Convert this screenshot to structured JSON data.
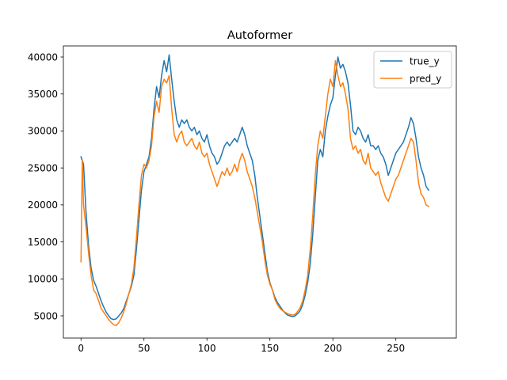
{
  "chart_data": {
    "type": "line",
    "title": "Autoformer",
    "xlabel": "",
    "ylabel": "",
    "xlim": [
      -14,
      298
    ],
    "ylim": [
      2000,
      41500
    ],
    "xticks": [
      0,
      50,
      100,
      150,
      200,
      250
    ],
    "yticks": [
      5000,
      10000,
      15000,
      20000,
      25000,
      30000,
      35000,
      40000
    ],
    "grid": false,
    "legend_position": "top-right",
    "series": [
      {
        "name": "true_y",
        "color": "#1f77b4",
        "points": [
          [
            0,
            26500
          ],
          [
            2,
            25500
          ],
          [
            4,
            19000
          ],
          [
            6,
            14500
          ],
          [
            8,
            11500
          ],
          [
            10,
            9800
          ],
          [
            12,
            9000
          ],
          [
            14,
            8000
          ],
          [
            16,
            7000
          ],
          [
            18,
            6200
          ],
          [
            20,
            5500
          ],
          [
            22,
            5000
          ],
          [
            24,
            4600
          ],
          [
            26,
            4500
          ],
          [
            28,
            4600
          ],
          [
            30,
            5000
          ],
          [
            32,
            5400
          ],
          [
            34,
            6000
          ],
          [
            36,
            7000
          ],
          [
            38,
            8000
          ],
          [
            40,
            9000
          ],
          [
            42,
            10500
          ],
          [
            44,
            14000
          ],
          [
            46,
            18000
          ],
          [
            48,
            22000
          ],
          [
            50,
            24500
          ],
          [
            52,
            25500
          ],
          [
            54,
            26500
          ],
          [
            56,
            29000
          ],
          [
            58,
            33000
          ],
          [
            60,
            36000
          ],
          [
            62,
            34500
          ],
          [
            64,
            37500
          ],
          [
            66,
            39500
          ],
          [
            68,
            38000
          ],
          [
            70,
            40300
          ],
          [
            72,
            37000
          ],
          [
            74,
            34000
          ],
          [
            76,
            31500
          ],
          [
            78,
            30500
          ],
          [
            80,
            31500
          ],
          [
            82,
            31000
          ],
          [
            84,
            31500
          ],
          [
            86,
            30500
          ],
          [
            88,
            30000
          ],
          [
            90,
            30500
          ],
          [
            92,
            29500
          ],
          [
            94,
            30000
          ],
          [
            96,
            29000
          ],
          [
            98,
            28500
          ],
          [
            100,
            29500
          ],
          [
            102,
            28000
          ],
          [
            104,
            27000
          ],
          [
            106,
            26500
          ],
          [
            108,
            25500
          ],
          [
            110,
            26000
          ],
          [
            112,
            27000
          ],
          [
            114,
            28000
          ],
          [
            116,
            28500
          ],
          [
            118,
            28000
          ],
          [
            120,
            28500
          ],
          [
            122,
            29000
          ],
          [
            124,
            28500
          ],
          [
            126,
            29500
          ],
          [
            128,
            30500
          ],
          [
            130,
            29500
          ],
          [
            132,
            28000
          ],
          [
            134,
            27000
          ],
          [
            136,
            26000
          ],
          [
            138,
            24000
          ],
          [
            140,
            21000
          ],
          [
            142,
            18500
          ],
          [
            144,
            16000
          ],
          [
            146,
            13500
          ],
          [
            148,
            11000
          ],
          [
            150,
            9500
          ],
          [
            152,
            8500
          ],
          [
            154,
            7500
          ],
          [
            156,
            6800
          ],
          [
            158,
            6300
          ],
          [
            160,
            5800
          ],
          [
            162,
            5400
          ],
          [
            164,
            5100
          ],
          [
            166,
            5000
          ],
          [
            168,
            4900
          ],
          [
            170,
            5000
          ],
          [
            172,
            5300
          ],
          [
            174,
            5700
          ],
          [
            176,
            6500
          ],
          [
            178,
            7800
          ],
          [
            180,
            9500
          ],
          [
            182,
            12000
          ],
          [
            184,
            16000
          ],
          [
            186,
            21000
          ],
          [
            188,
            26000
          ],
          [
            190,
            27500
          ],
          [
            192,
            26500
          ],
          [
            194,
            30000
          ],
          [
            196,
            32000
          ],
          [
            198,
            33500
          ],
          [
            200,
            34500
          ],
          [
            202,
            37500
          ],
          [
            204,
            40000
          ],
          [
            206,
            38500
          ],
          [
            208,
            39000
          ],
          [
            210,
            38000
          ],
          [
            212,
            36500
          ],
          [
            214,
            33500
          ],
          [
            216,
            30000
          ],
          [
            218,
            29500
          ],
          [
            220,
            30500
          ],
          [
            222,
            30000
          ],
          [
            224,
            29000
          ],
          [
            226,
            28500
          ],
          [
            228,
            29500
          ],
          [
            230,
            28000
          ],
          [
            232,
            28000
          ],
          [
            234,
            27500
          ],
          [
            236,
            28000
          ],
          [
            238,
            27000
          ],
          [
            240,
            26500
          ],
          [
            242,
            25500
          ],
          [
            244,
            24000
          ],
          [
            246,
            25000
          ],
          [
            248,
            26000
          ],
          [
            250,
            27000
          ],
          [
            252,
            27500
          ],
          [
            254,
            28000
          ],
          [
            256,
            28500
          ],
          [
            258,
            29500
          ],
          [
            260,
            30500
          ],
          [
            262,
            31800
          ],
          [
            264,
            31000
          ],
          [
            266,
            29000
          ],
          [
            268,
            26500
          ],
          [
            270,
            25000
          ],
          [
            272,
            24000
          ],
          [
            274,
            22500
          ],
          [
            276,
            22000
          ]
        ]
      },
      {
        "name": "pred_y",
        "color": "#ff7f0e",
        "points": [
          [
            0,
            12300
          ],
          [
            1,
            26000
          ],
          [
            2,
            20000
          ],
          [
            4,
            17000
          ],
          [
            6,
            13500
          ],
          [
            8,
            10500
          ],
          [
            10,
            8500
          ],
          [
            12,
            8000
          ],
          [
            14,
            7000
          ],
          [
            16,
            6000
          ],
          [
            18,
            5500
          ],
          [
            20,
            5000
          ],
          [
            22,
            4500
          ],
          [
            24,
            4100
          ],
          [
            26,
            3800
          ],
          [
            28,
            3700
          ],
          [
            30,
            4100
          ],
          [
            32,
            4700
          ],
          [
            34,
            5600
          ],
          [
            36,
            6700
          ],
          [
            38,
            8000
          ],
          [
            40,
            9300
          ],
          [
            42,
            11500
          ],
          [
            44,
            15500
          ],
          [
            46,
            20000
          ],
          [
            48,
            24000
          ],
          [
            50,
            25500
          ],
          [
            52,
            25000
          ],
          [
            54,
            26000
          ],
          [
            56,
            28000
          ],
          [
            58,
            32000
          ],
          [
            60,
            34000
          ],
          [
            62,
            32500
          ],
          [
            64,
            36000
          ],
          [
            66,
            37000
          ],
          [
            68,
            36500
          ],
          [
            70,
            37500
          ],
          [
            72,
            33000
          ],
          [
            74,
            29500
          ],
          [
            76,
            28500
          ],
          [
            78,
            29500
          ],
          [
            80,
            30000
          ],
          [
            82,
            28500
          ],
          [
            84,
            28000
          ],
          [
            86,
            28500
          ],
          [
            88,
            29000
          ],
          [
            90,
            28000
          ],
          [
            92,
            27500
          ],
          [
            94,
            28500
          ],
          [
            96,
            27000
          ],
          [
            98,
            26500
          ],
          [
            100,
            27000
          ],
          [
            102,
            25500
          ],
          [
            104,
            24500
          ],
          [
            106,
            23500
          ],
          [
            108,
            22500
          ],
          [
            110,
            23500
          ],
          [
            112,
            24500
          ],
          [
            114,
            24000
          ],
          [
            116,
            25000
          ],
          [
            118,
            24000
          ],
          [
            120,
            24500
          ],
          [
            122,
            25500
          ],
          [
            124,
            24500
          ],
          [
            126,
            26000
          ],
          [
            128,
            27000
          ],
          [
            130,
            26000
          ],
          [
            132,
            24500
          ],
          [
            134,
            23500
          ],
          [
            136,
            22500
          ],
          [
            138,
            21000
          ],
          [
            140,
            19000
          ],
          [
            142,
            17000
          ],
          [
            144,
            15000
          ],
          [
            146,
            12500
          ],
          [
            148,
            10500
          ],
          [
            150,
            9300
          ],
          [
            152,
            8500
          ],
          [
            154,
            7200
          ],
          [
            156,
            6500
          ],
          [
            158,
            6000
          ],
          [
            160,
            5700
          ],
          [
            162,
            5500
          ],
          [
            164,
            5300
          ],
          [
            166,
            5200
          ],
          [
            168,
            5100
          ],
          [
            170,
            5200
          ],
          [
            172,
            5600
          ],
          [
            174,
            6100
          ],
          [
            176,
            7000
          ],
          [
            178,
            8500
          ],
          [
            180,
            10500
          ],
          [
            182,
            14000
          ],
          [
            184,
            18500
          ],
          [
            186,
            24000
          ],
          [
            188,
            28000
          ],
          [
            190,
            30000
          ],
          [
            192,
            29000
          ],
          [
            194,
            32000
          ],
          [
            196,
            35000
          ],
          [
            198,
            37000
          ],
          [
            200,
            36000
          ],
          [
            202,
            39500
          ],
          [
            204,
            37500
          ],
          [
            206,
            36000
          ],
          [
            208,
            36500
          ],
          [
            210,
            35000
          ],
          [
            212,
            33000
          ],
          [
            214,
            29000
          ],
          [
            216,
            27500
          ],
          [
            218,
            28000
          ],
          [
            220,
            27000
          ],
          [
            222,
            27500
          ],
          [
            224,
            26000
          ],
          [
            226,
            25500
          ],
          [
            228,
            27000
          ],
          [
            230,
            25000
          ],
          [
            232,
            24500
          ],
          [
            234,
            24000
          ],
          [
            236,
            24500
          ],
          [
            238,
            23000
          ],
          [
            240,
            22000
          ],
          [
            242,
            21000
          ],
          [
            244,
            20500
          ],
          [
            246,
            21500
          ],
          [
            248,
            22500
          ],
          [
            250,
            23500
          ],
          [
            252,
            24000
          ],
          [
            254,
            25000
          ],
          [
            256,
            26000
          ],
          [
            258,
            27000
          ],
          [
            260,
            28000
          ],
          [
            262,
            29000
          ],
          [
            264,
            28500
          ],
          [
            266,
            26000
          ],
          [
            268,
            23000
          ],
          [
            270,
            21500
          ],
          [
            272,
            21000
          ],
          [
            274,
            20000
          ],
          [
            276,
            19800
          ]
        ]
      }
    ]
  }
}
